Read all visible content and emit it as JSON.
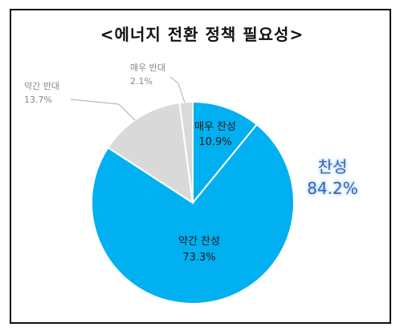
{
  "chart_data": {
    "type": "pie",
    "title": "<에너지 전환 정책 필요성>",
    "slices": [
      {
        "label": "매우 찬성",
        "value": 10.9,
        "display": "10.9%",
        "color": "#00B0F0"
      },
      {
        "label": "약간 찬성",
        "value": 73.3,
        "display": "73.3%",
        "color": "#00B0F0"
      },
      {
        "label": "약간 반대",
        "value": 13.7,
        "display": "13.7%",
        "color": "#D9D9D9"
      },
      {
        "label": "매우 반대",
        "value": 2.1,
        "display": "2.1%",
        "color": "#D9D9D9"
      }
    ],
    "summary": {
      "label": "찬성",
      "value": "84.2%",
      "color": "#3F5FA8"
    }
  }
}
